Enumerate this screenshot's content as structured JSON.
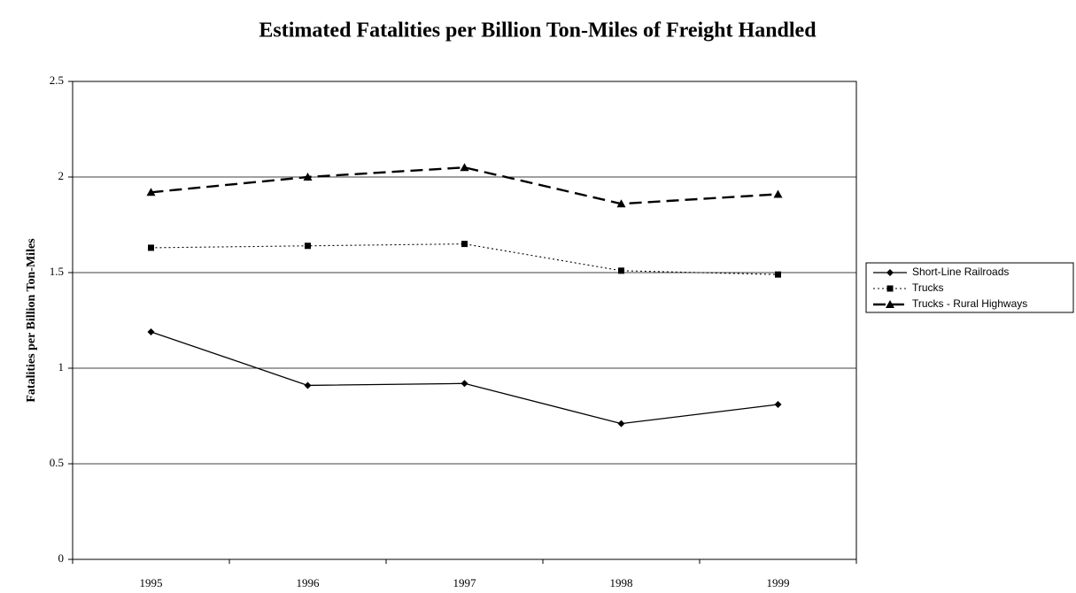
{
  "chart_data": {
    "type": "line",
    "title": "Estimated Fatalities per Billion Ton-Miles of Freight Handled",
    "y_label": "Fatalities per Billion Ton-Miles",
    "categories": [
      "1995",
      "1996",
      "1997",
      "1998",
      "1999"
    ],
    "series": [
      {
        "name": "Short-Line Railroads",
        "color": "#000000",
        "dash": "solid",
        "marker": "diamond",
        "values": [
          1.19,
          0.91,
          0.92,
          0.71,
          0.81
        ]
      },
      {
        "name": "Trucks",
        "color": "#000000",
        "dash": "dotted",
        "marker": "square",
        "values": [
          1.63,
          1.64,
          1.65,
          1.51,
          1.49
        ]
      },
      {
        "name": "Trucks - Rural Highways",
        "color": "#000000",
        "dash": "dashed",
        "marker": "triangle",
        "values": [
          1.92,
          2.0,
          2.05,
          1.86,
          1.91
        ]
      }
    ],
    "ylim": [
      0,
      2.5
    ],
    "yticks": [
      0,
      0.5,
      1,
      1.5,
      2,
      2.5
    ],
    "grid": true,
    "legend": "right"
  }
}
